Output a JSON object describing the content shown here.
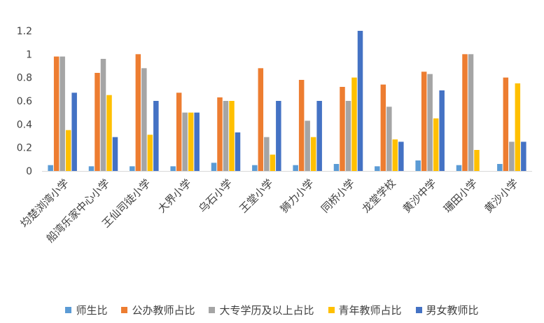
{
  "chart_data": {
    "type": "bar",
    "categories": [
      "均楚浏湾小学",
      "船湾乐家中心小学",
      "王仙司徒小学",
      "大界小学",
      "乌石小学",
      "王堂小学",
      "狮力小学",
      "同桥小学",
      "龙堂学校",
      "黄沙中学",
      "珊田小学",
      "黄沙小学"
    ],
    "series": [
      {
        "name": "师生比",
        "color": "#5B9BD5",
        "values": [
          0.05,
          0.04,
          0.04,
          0.04,
          0.07,
          0.05,
          0.05,
          0.06,
          0.04,
          0.09,
          0.05,
          0.06
        ]
      },
      {
        "name": "公办教师占比",
        "color": "#ED7D31",
        "values": [
          0.98,
          0.84,
          1.0,
          0.67,
          0.63,
          0.88,
          0.78,
          0.72,
          0.74,
          0.85,
          1.0,
          0.8
        ]
      },
      {
        "name": "大专学历及以上占比",
        "color": "#A5A5A5",
        "values": [
          0.98,
          0.96,
          0.88,
          0.5,
          0.6,
          0.29,
          0.43,
          0.6,
          0.55,
          0.83,
          1.0,
          0.25
        ]
      },
      {
        "name": "青年教师占比",
        "color": "#FFC000",
        "values": [
          0.35,
          0.65,
          0.31,
          0.5,
          0.6,
          0.14,
          0.29,
          0.8,
          0.27,
          0.45,
          0.18,
          0.75
        ]
      },
      {
        "name": "男女教师比",
        "color": "#4472C4",
        "values": [
          0.67,
          0.29,
          0.6,
          0.5,
          0.33,
          0.6,
          0.6,
          1.2,
          0.25,
          0.69,
          null,
          0.25
        ]
      }
    ],
    "yticks": [
      "0",
      "0.2",
      "0.4",
      "0.6",
      "0.8",
      "1",
      "1.2"
    ],
    "ylim": [
      0,
      1.2
    ],
    "grid": true,
    "legend": "bottom"
  }
}
